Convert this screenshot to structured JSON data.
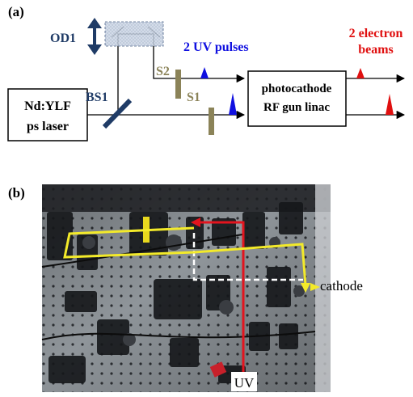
{
  "panel_a": {
    "label": "(a)",
    "laser": {
      "line1": "Nd:YLF",
      "line2": "ps laser"
    },
    "od1": "OD1",
    "bs1": "BS1",
    "s1": "S1",
    "s2": "S2",
    "uv_pulses": "2 UV pulses",
    "gun": {
      "line1": "photocathode",
      "line2": "RF gun linac"
    },
    "electron": {
      "line1": "2 electron",
      "line2": "beams"
    }
  },
  "panel_b": {
    "label": "(b)",
    "cathode": "cathode",
    "uv": "UV"
  },
  "colors": {
    "navy": "#1f3b66",
    "shutter": "#8b8358",
    "uv_blue": "#1010e0",
    "electron_red": "#e01010",
    "beam_yellow": "#f3ea2a",
    "beam_red": "#e3141e",
    "beam_white": "#ffffff"
  }
}
